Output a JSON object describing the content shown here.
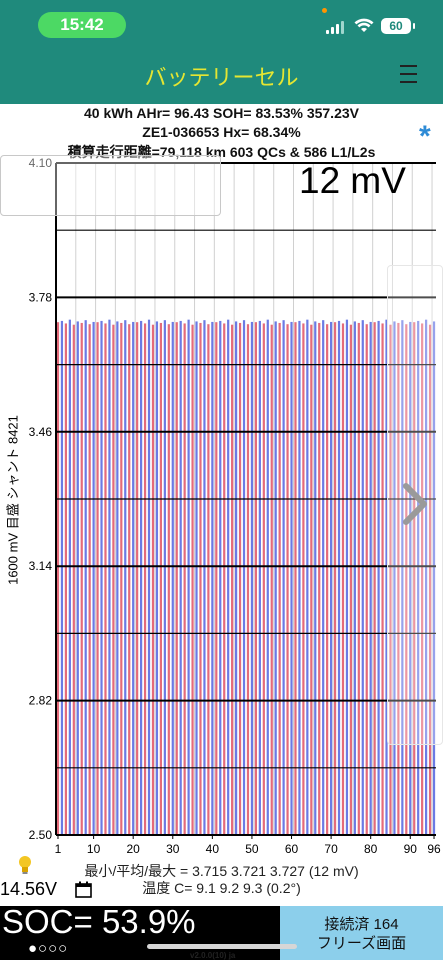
{
  "status": {
    "time": "15:42",
    "battery": "60"
  },
  "header": {
    "title": "バッテリーセル"
  },
  "info": {
    "line1": "40 kWh  AHr= 96.43  SOH= 83.53%   357.23V",
    "line2": "ZE1-036653   Hx= 68.34%",
    "line3": "積算走行距離=79,118 km 603 QCs & 586 L1/L2s"
  },
  "chart_data": {
    "type": "bar",
    "title": "12 mV",
    "ylabel": "1600 mV 目盛  シャント 8421",
    "ylim": [
      2.5,
      4.1
    ],
    "y_ticks": [
      "4.10",
      "3.78",
      "3.46",
      "3.14",
      "2.82",
      "2.50"
    ],
    "x_ticks": [
      "1",
      "10",
      "20",
      "30",
      "40",
      "50",
      "60",
      "70",
      "80",
      "90",
      "96"
    ],
    "cell_count": 96,
    "min": 3.715,
    "avg": 3.721,
    "max": 3.727,
    "series_colors": [
      "#e46b7a",
      "#6b7ae4"
    ]
  },
  "stats": {
    "voltage_line": "最小/平均/最大 = 3.715  3.721  3.727  (12 mV)",
    "temp_line": "温度 C= 9.1  9.2  9.3  (0.2°)"
  },
  "aux_voltage": "14.56V",
  "soc": {
    "text": "SOC= 53.9%",
    "dots": "●○○○"
  },
  "connect": {
    "line1": "接続済 164",
    "line2": "フリーズ画面"
  },
  "version": "v2.0.0(10) ja",
  "icons": [
    "bulb-icon",
    "calendar-icon",
    "hamburger-menu-icon",
    "chevron-right-icon",
    "asterisk-icon",
    "signal-icon",
    "wifi-icon",
    "battery-icon"
  ]
}
